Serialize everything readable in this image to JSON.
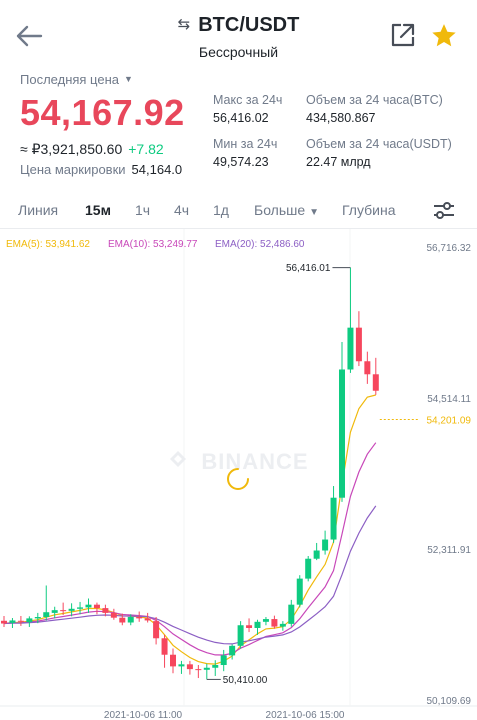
{
  "header": {
    "back_icon": "arrow-left-icon",
    "pair": "BTC/USDT",
    "swap_icon": "⇆",
    "subtitle": "Бессрочный",
    "share_icon": "external-link-icon",
    "favorite_icon": "star-icon",
    "favorite_color": "#f0b90b"
  },
  "price": {
    "last_label": "Последняя цена",
    "last_value": "54,167.92",
    "last_color": "#e8475b",
    "rub_value": "≈ ₽3,921,850.60",
    "change": "+7.82",
    "mark_label": "Цена маркировки",
    "mark_value": "54,164.0"
  },
  "stats": {
    "high_label": "Макс за 24ч",
    "high_value": "56,416.02",
    "low_label": "Мин за 24ч",
    "low_value": "49,574.23",
    "vol_btc_label": "Объем за 24 часа(BTC)",
    "vol_btc_value": "434,580.867",
    "vol_usdt_label": "Объем за 24 часа(USDT)",
    "vol_usdt_value": "22.47 млрд"
  },
  "tabs": {
    "line": "Линия",
    "m15": "15м",
    "h1": "1ч",
    "h4": "4ч",
    "d1": "1д",
    "more": "Больше",
    "depth": "Глубина",
    "active": "m15"
  },
  "chart_data": {
    "type": "candlestick",
    "ema_legend": [
      {
        "label": "EMA(5): 53,941.62",
        "color": "#f0b90b"
      },
      {
        "label": "EMA(10): 53,249.77",
        "color": "#c848b9"
      },
      {
        "label": "EMA(20): 52,486.60",
        "color": "#8c5fc4"
      }
    ],
    "y_ticks": [
      "56,716.32",
      "54,514.11",
      "52,311.91",
      "50,109.69"
    ],
    "y_tick_values": [
      56716.32,
      54514.11,
      52311.91,
      50109.69
    ],
    "x_ticks": [
      "2021-10-06 11:00",
      "2021-10-06 15:00"
    ],
    "ylim": [
      50109.69,
      56716.32
    ],
    "current_price_label": "54,201.09",
    "current_price": 54201.09,
    "max_label": "56,416.01",
    "max_value": 56416.01,
    "min_label": "50,410.00",
    "min_value": 50410.0,
    "watermark": "BINANCE",
    "up_color": "#0ecb81",
    "down_color": "#f6465d",
    "candles": [
      [
        51265,
        51335,
        51175,
        51225
      ],
      [
        51235,
        51305,
        51160,
        51270
      ],
      [
        51265,
        51335,
        51190,
        51250
      ],
      [
        51245,
        51330,
        51175,
        51300
      ],
      [
        51300,
        51380,
        51230,
        51320
      ],
      [
        51320,
        51780,
        51270,
        51390
      ],
      [
        51380,
        51470,
        51300,
        51420
      ],
      [
        51420,
        51530,
        51350,
        51410
      ],
      [
        51410,
        51520,
        51330,
        51440
      ],
      [
        51440,
        51540,
        51360,
        51460
      ],
      [
        51460,
        51590,
        51380,
        51500
      ],
      [
        51500,
        51530,
        51360,
        51450
      ],
      [
        51450,
        51500,
        51330,
        51380
      ],
      [
        51380,
        51440,
        51280,
        51310
      ],
      [
        51310,
        51370,
        51200,
        51240
      ],
      [
        51240,
        51360,
        51200,
        51320
      ],
      [
        51320,
        51400,
        51250,
        51300
      ],
      [
        51300,
        51380,
        51240,
        51270
      ],
      [
        51260,
        51320,
        50920,
        51010
      ],
      [
        51010,
        51060,
        50580,
        50770
      ],
      [
        50770,
        50860,
        50500,
        50600
      ],
      [
        50600,
        50680,
        50490,
        50630
      ],
      [
        50630,
        50680,
        50480,
        50560
      ],
      [
        50560,
        50620,
        50430,
        50550
      ],
      [
        50550,
        50640,
        50410,
        50580
      ],
      [
        50580,
        50690,
        50460,
        50620
      ],
      [
        50620,
        50840,
        50530,
        50760
      ],
      [
        50760,
        50920,
        50700,
        50900
      ],
      [
        50900,
        51260,
        50860,
        51200
      ],
      [
        51200,
        51300,
        51100,
        51160
      ],
      [
        51160,
        51280,
        51060,
        51250
      ],
      [
        51250,
        51320,
        51200,
        51290
      ],
      [
        51290,
        51340,
        51150,
        51180
      ],
      [
        51180,
        51260,
        51120,
        51220
      ],
      [
        51220,
        51570,
        51180,
        51500
      ],
      [
        51500,
        51930,
        51460,
        51880
      ],
      [
        51880,
        52210,
        51840,
        52170
      ],
      [
        52170,
        52400,
        52150,
        52290
      ],
      [
        52290,
        52580,
        52230,
        52450
      ],
      [
        52450,
        53230,
        52400,
        53060
      ],
      [
        53060,
        55330,
        53000,
        54930
      ],
      [
        54930,
        56416,
        54880,
        55540
      ],
      [
        55540,
        55780,
        54980,
        55050
      ],
      [
        55050,
        55190,
        54720,
        54860
      ],
      [
        54860,
        55100,
        54560,
        54620
      ]
    ]
  }
}
